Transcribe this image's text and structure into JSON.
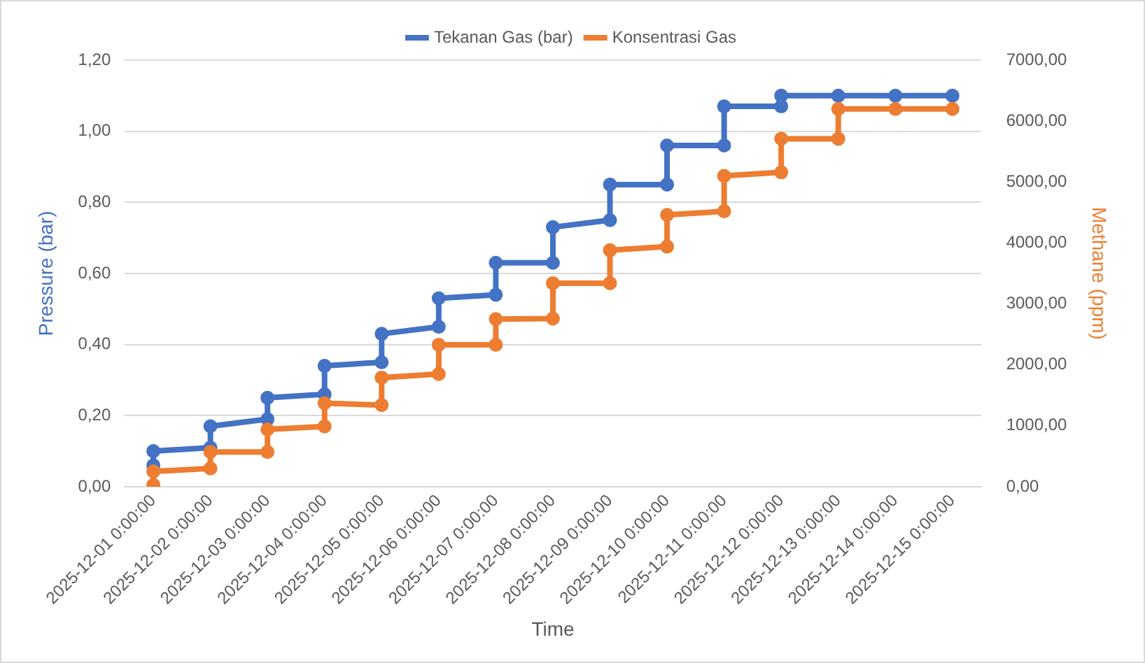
{
  "chart_data": {
    "type": "line",
    "xlabel": "Time",
    "ylabel": "Pressure (bar)",
    "y2label": "Methane (ppm)",
    "xlim": [
      "2025-11-30T12:00",
      "2025-12-15T12:00"
    ],
    "xticks": [
      {
        "value": "2025-12-01",
        "label": "2025-12-01 0:00:00"
      },
      {
        "value": "2025-12-02",
        "label": "2025-12-02 0:00:00"
      },
      {
        "value": "2025-12-03",
        "label": "2025-12-03 0:00:00"
      },
      {
        "value": "2025-12-04",
        "label": "2025-12-04 0:00:00"
      },
      {
        "value": "2025-12-05",
        "label": "2025-12-05 0:00:00"
      },
      {
        "value": "2025-12-06",
        "label": "2025-12-06 0:00:00"
      },
      {
        "value": "2025-12-07",
        "label": "2025-12-07 0:00:00"
      },
      {
        "value": "2025-12-08",
        "label": "2025-12-08 0:00:00"
      },
      {
        "value": "2025-12-09",
        "label": "2025-12-09 0:00:00"
      },
      {
        "value": "2025-12-10",
        "label": "2025-12-10 0:00:00"
      },
      {
        "value": "2025-12-11",
        "label": "2025-12-11 0:00:00"
      },
      {
        "value": "2025-12-12",
        "label": "2025-12-12 0:00:00"
      },
      {
        "value": "2025-12-13",
        "label": "2025-12-13 0:00:00"
      },
      {
        "value": "2025-12-14",
        "label": "2025-12-14 0:00:00"
      },
      {
        "value": "2025-12-15",
        "label": "2025-12-15 0:00:00"
      }
    ],
    "ylim": [
      0,
      1.2
    ],
    "yticks": [
      {
        "value": 0,
        "label": "0,00"
      },
      {
        "value": 0.2,
        "label": "0,20"
      },
      {
        "value": 0.4,
        "label": "0,40"
      },
      {
        "value": 0.6,
        "label": "0,60"
      },
      {
        "value": 0.8,
        "label": "0,80"
      },
      {
        "value": 1,
        "label": "1,00"
      },
      {
        "value": 1.2,
        "label": "1,20"
      }
    ],
    "y2lim": [
      0,
      7000
    ],
    "y2ticks": [
      {
        "value": 0,
        "label": "0,00"
      },
      {
        "value": 1000,
        "label": "1000,00"
      },
      {
        "value": 2000,
        "label": "2000,00"
      },
      {
        "value": 3000,
        "label": "3000,00"
      },
      {
        "value": 4000,
        "label": "4000,00"
      },
      {
        "value": 5000,
        "label": "5000,00"
      },
      {
        "value": 6000,
        "label": "6000,00"
      },
      {
        "value": 7000,
        "label": "7000,00"
      }
    ],
    "grid": "y",
    "legend": "top",
    "marker": "circle",
    "line_style": "solid",
    "series": [
      {
        "name": "Tekanan Gas (bar)",
        "color": "#4472c4",
        "axis": "y",
        "x": [
          "2025-12-01",
          "2025-12-01",
          "2025-12-02",
          "2025-12-02",
          "2025-12-03",
          "2025-12-03",
          "2025-12-04",
          "2025-12-04",
          "2025-12-05",
          "2025-12-05",
          "2025-12-06",
          "2025-12-06",
          "2025-12-07",
          "2025-12-07",
          "2025-12-08",
          "2025-12-08",
          "2025-12-09",
          "2025-12-09",
          "2025-12-10",
          "2025-12-10",
          "2025-12-11",
          "2025-12-11",
          "2025-12-12",
          "2025-12-12",
          "2025-12-13",
          "2025-12-14",
          "2025-12-15"
        ],
        "values": [
          0.06,
          0.1,
          0.11,
          0.17,
          0.19,
          0.25,
          0.26,
          0.34,
          0.35,
          0.43,
          0.45,
          0.53,
          0.54,
          0.63,
          0.63,
          0.73,
          0.75,
          0.85,
          0.85,
          0.96,
          0.96,
          1.07,
          1.07,
          1.1,
          1.1,
          1.1,
          1.1
        ]
      },
      {
        "name": "Konsentrasi Gas",
        "color": "#ed7d31",
        "axis": "y2",
        "x": [
          "2025-12-01",
          "2025-12-01",
          "2025-12-02",
          "2025-12-02",
          "2025-12-03",
          "2025-12-03",
          "2025-12-04",
          "2025-12-04",
          "2025-12-05",
          "2025-12-05",
          "2025-12-06",
          "2025-12-06",
          "2025-12-07",
          "2025-12-07",
          "2025-12-08",
          "2025-12-08",
          "2025-12-09",
          "2025-12-09",
          "2025-12-10",
          "2025-12-10",
          "2025-12-11",
          "2025-12-11",
          "2025-12-12",
          "2025-12-12",
          "2025-12-13",
          "2025-12-13",
          "2025-12-14",
          "2025-12-15"
        ],
        "values": [
          30,
          250,
          300,
          570,
          570,
          940,
          990,
          1370,
          1340,
          1790,
          1850,
          2330,
          2330,
          2750,
          2760,
          3340,
          3340,
          3880,
          3940,
          4460,
          4520,
          5100,
          5160,
          5710,
          5710,
          6200,
          6200,
          6200
        ]
      }
    ]
  }
}
